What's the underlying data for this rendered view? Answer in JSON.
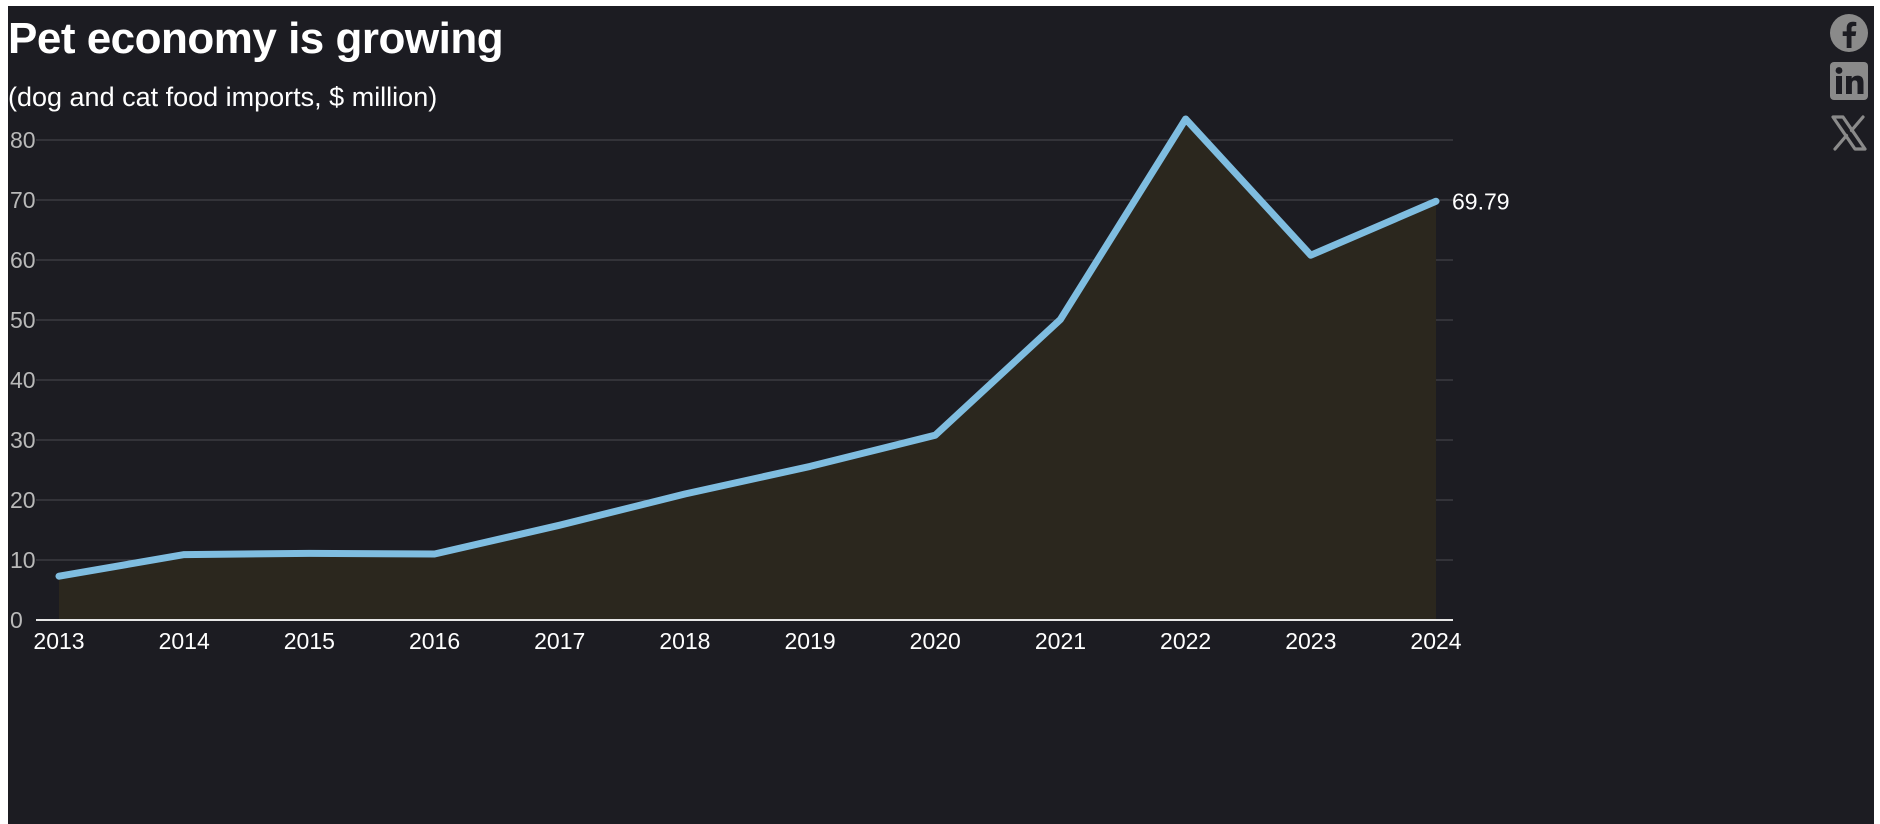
{
  "title": "Pet economy is growing",
  "subtitle": "(dog and cat food imports, $ million)",
  "share": {
    "facebook": "facebook-icon",
    "linkedin": "linkedin-icon",
    "x": "x-icon"
  },
  "colors": {
    "background": "#1c1c22",
    "line": "#7fbde0",
    "area": "#2b271e",
    "grid": "#4a4a50",
    "ytick": "#b9b9b9",
    "xtick": "#ffffff"
  },
  "chart_data": {
    "type": "area",
    "title": "Pet economy is growing",
    "subtitle": "(dog and cat food imports, $ million)",
    "xlabel": "",
    "ylabel": "",
    "x": [
      "2013",
      "2014",
      "2015",
      "2016",
      "2017",
      "2018",
      "2019",
      "2020",
      "2021",
      "2022",
      "2023",
      "2024"
    ],
    "values": [
      7.3,
      10.9,
      11.1,
      11.0,
      15.8,
      21.0,
      25.6,
      30.8,
      50.1,
      83.5,
      60.8,
      69.79
    ],
    "ylim": [
      0,
      80
    ],
    "yticks": [
      0,
      10,
      20,
      30,
      40,
      50,
      60,
      70,
      80
    ],
    "grid": true,
    "annotations": [
      {
        "x": "2024",
        "label": "69.79"
      }
    ]
  }
}
